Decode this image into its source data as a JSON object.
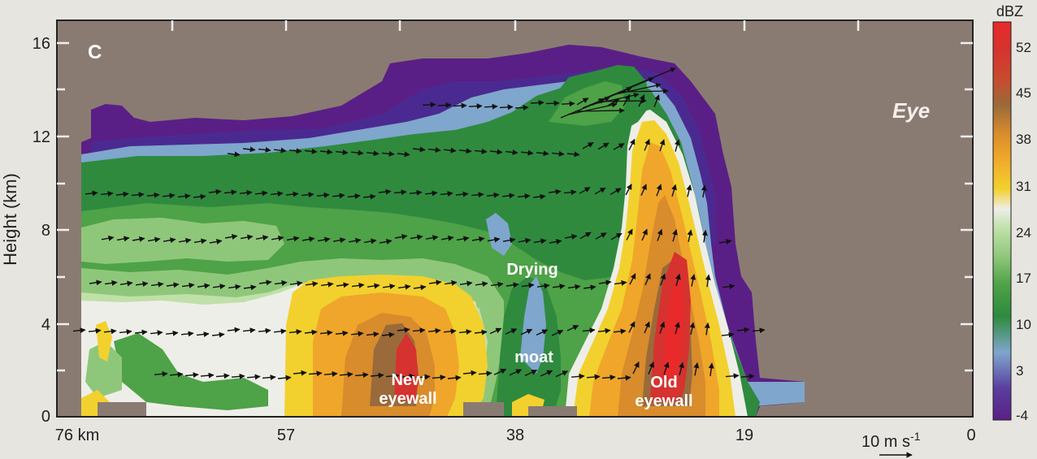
{
  "chart_data": {
    "type": "heatmap",
    "panel_label": "C",
    "ylabel": "Height (km)",
    "x_ticks": [
      "76 km",
      "57",
      "38",
      "19",
      "0"
    ],
    "y_ticks": [
      "0",
      "4",
      "8",
      "12",
      "16"
    ],
    "xlim": [
      76,
      0
    ],
    "ylim": [
      0,
      16.5
    ],
    "colorbar": {
      "title": "dBZ",
      "ticks": [
        "-4",
        "3",
        "10",
        "17",
        "24",
        "31",
        "38",
        "45",
        "52"
      ],
      "colors": [
        "#5a1f86",
        "#5a3fa0",
        "#7fa6cc",
        "#2f8a3e",
        "#4ea247",
        "#8fc77a",
        "#bfe0a8",
        "#eeeee8",
        "#f2d12e",
        "#f0a62a",
        "#d88c2c",
        "#9a6a3a",
        "#c94a2e",
        "#d6322f",
        "#e82a2a"
      ]
    },
    "annotations": [
      {
        "text": "Eye",
        "style": "italic"
      },
      {
        "text": "Drying"
      },
      {
        "text": "moat"
      },
      {
        "text": "New",
        "line2": "eyewall"
      },
      {
        "text": "Old",
        "line2": "eyewall"
      }
    ],
    "vector_scale": {
      "label_main": "10 m s",
      "label_exp": "-1"
    },
    "background": "#8a7b72"
  }
}
